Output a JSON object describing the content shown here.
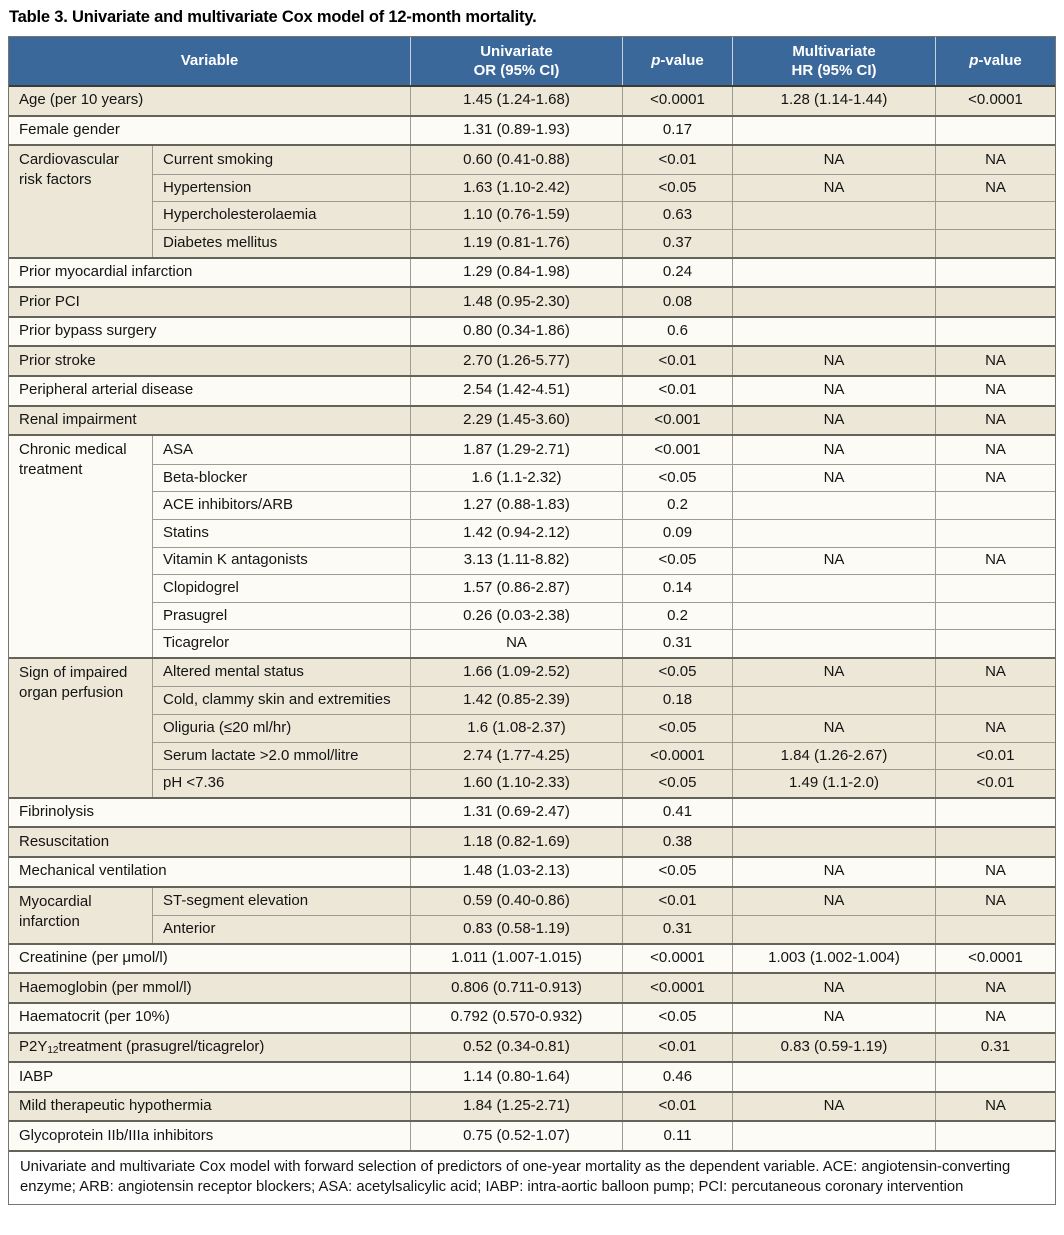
{
  "title": "Table 3. Univariate and multivariate Cox model of 12-month mortality.",
  "colors": {
    "header_bg": "#3b689b",
    "header_text": "#ffffff",
    "row_beige": "#ece7d7",
    "row_white": "#fcfbf5",
    "border_dark": "#63635a",
    "border_light": "#9c9c92"
  },
  "header": {
    "variable": "Variable",
    "univariate": {
      "line1": "Univariate",
      "line2": "OR (95% CI)"
    },
    "pvalue1": {
      "italic": "p",
      "rest": "-value"
    },
    "multivariate": {
      "line1": "Multivariate",
      "line2": "HR (95% CI)"
    },
    "pvalue2": {
      "italic": "p",
      "rest": "-value"
    }
  },
  "rows": [
    {
      "shade": "beige",
      "variable": "Age (per 10 years)",
      "cells": [
        "1.45 (1.24-1.68)",
        "<0.0001",
        "1.28 (1.14-1.44)",
        "<0.0001"
      ]
    },
    {
      "shade": "white",
      "variable": "Female gender",
      "cells": [
        "1.31 (0.89-1.93)",
        "0.17",
        "",
        ""
      ]
    },
    {
      "shade": "beige",
      "group": "Cardiovascular risk factors",
      "subs": [
        {
          "variable": "Current smoking",
          "cells": [
            "0.60 (0.41-0.88)",
            "<0.01",
            "NA",
            "NA"
          ]
        },
        {
          "variable": "Hypertension",
          "cells": [
            "1.63 (1.10-2.42)",
            "<0.05",
            "NA",
            "NA"
          ]
        },
        {
          "variable": "Hypercholesterolaemia",
          "cells": [
            "1.10 (0.76-1.59)",
            "0.63",
            "",
            ""
          ]
        },
        {
          "variable": "Diabetes mellitus",
          "cells": [
            "1.19 (0.81-1.76)",
            "0.37",
            "",
            ""
          ]
        }
      ]
    },
    {
      "shade": "white",
      "variable": "Prior myocardial infarction",
      "cells": [
        "1.29 (0.84-1.98)",
        "0.24",
        "",
        ""
      ]
    },
    {
      "shade": "beige",
      "variable": "Prior PCI",
      "cells": [
        "1.48 (0.95-2.30)",
        "0.08",
        "",
        ""
      ]
    },
    {
      "shade": "white",
      "variable": "Prior bypass surgery",
      "cells": [
        "0.80 (0.34-1.86)",
        "0.6",
        "",
        ""
      ]
    },
    {
      "shade": "beige",
      "variable": "Prior stroke",
      "cells": [
        "2.70 (1.26-5.77)",
        "<0.01",
        "NA",
        "NA"
      ]
    },
    {
      "shade": "white",
      "variable": "Peripheral arterial disease",
      "cells": [
        "2.54 (1.42-4.51)",
        "<0.01",
        "NA",
        "NA"
      ]
    },
    {
      "shade": "beige",
      "variable": "Renal impairment",
      "cells": [
        "2.29 (1.45-3.60)",
        "<0.001",
        "NA",
        "NA"
      ]
    },
    {
      "shade": "white",
      "group": "Chronic medical treatment",
      "subs": [
        {
          "variable": "ASA",
          "cells": [
            "1.87 (1.29-2.71)",
            "<0.001",
            "NA",
            "NA"
          ]
        },
        {
          "variable": "Beta-blocker",
          "cells": [
            "1.6 (1.1-2.32)",
            "<0.05",
            "NA",
            "NA"
          ]
        },
        {
          "variable": "ACE inhibitors/ARB",
          "cells": [
            "1.27 (0.88-1.83)",
            "0.2",
            "",
            ""
          ]
        },
        {
          "variable": "Statins",
          "cells": [
            "1.42 (0.94-2.12)",
            "0.09",
            "",
            ""
          ]
        },
        {
          "variable": "Vitamin K antagonists",
          "cells": [
            "3.13 (1.11-8.82)",
            "<0.05",
            "NA",
            "NA"
          ]
        },
        {
          "variable": "Clopidogrel",
          "cells": [
            "1.57 (0.86-2.87)",
            "0.14",
            "",
            ""
          ]
        },
        {
          "variable": "Prasugrel",
          "cells": [
            "0.26 (0.03-2.38)",
            "0.2",
            "",
            ""
          ]
        },
        {
          "variable": "Ticagrelor",
          "cells": [
            "NA",
            "0.31",
            "",
            ""
          ]
        }
      ]
    },
    {
      "shade": "beige",
      "group": "Sign of impaired organ perfusion",
      "subs": [
        {
          "variable": "Altered mental status",
          "cells": [
            "1.66 (1.09-2.52)",
            "<0.05",
            "NA",
            "NA"
          ]
        },
        {
          "variable": "Cold, clammy skin and extremities",
          "cells": [
            "1.42 (0.85-2.39)",
            "0.18",
            "",
            ""
          ]
        },
        {
          "variable": "Oliguria (≤20 ml/hr)",
          "cells": [
            "1.6 (1.08-2.37)",
            "<0.05",
            "NA",
            "NA"
          ]
        },
        {
          "variable": "Serum lactate >2.0 mmol/litre",
          "cells": [
            "2.74 (1.77-4.25)",
            "<0.0001",
            "1.84 (1.26-2.67)",
            "<0.01"
          ]
        },
        {
          "variable": "pH <7.36",
          "cells": [
            "1.60 (1.10-2.33)",
            "<0.05",
            "1.49 (1.1-2.0)",
            "<0.01"
          ]
        }
      ]
    },
    {
      "shade": "white",
      "variable": "Fibrinolysis",
      "cells": [
        "1.31 (0.69-2.47)",
        "0.41",
        "",
        ""
      ]
    },
    {
      "shade": "beige",
      "variable": "Resuscitation",
      "cells": [
        "1.18 (0.82-1.69)",
        "0.38",
        "",
        ""
      ]
    },
    {
      "shade": "white",
      "variable": "Mechanical ventilation",
      "cells": [
        "1.48 (1.03-2.13)",
        "<0.05",
        "NA",
        "NA"
      ]
    },
    {
      "shade": "beige",
      "group": "Myocardial infarction",
      "subs": [
        {
          "variable": "ST-segment elevation",
          "cells": [
            "0.59 (0.40-0.86)",
            "<0.01",
            "NA",
            "NA"
          ]
        },
        {
          "variable": "Anterior",
          "cells": [
            "0.83 (0.58-1.19)",
            "0.31",
            "",
            ""
          ]
        }
      ]
    },
    {
      "shade": "white",
      "variable": "Creatinine (per μmol/l)",
      "cells": [
        "1.011 (1.007-1.015)",
        "<0.0001",
        "1.003 (1.002-1.004)",
        "<0.0001"
      ]
    },
    {
      "shade": "beige",
      "variable": "Haemoglobin (per mmol/l)",
      "cells": [
        "0.806 (0.711-0.913)",
        "<0.0001",
        "NA",
        "NA"
      ]
    },
    {
      "shade": "white",
      "variable": "Haematocrit (per 10%)",
      "cells": [
        "0.792 (0.570-0.932)",
        "<0.05",
        "NA",
        "NA"
      ]
    },
    {
      "shade": "beige",
      "variable_parts": [
        {
          "t": "P2Y"
        },
        {
          "t": "12",
          "sub": true
        },
        {
          "t": " treatment (prasugrel/ticagrelor)"
        }
      ],
      "cells": [
        "0.52 (0.34-0.81)",
        "<0.01",
        "0.83 (0.59-1.19)",
        "0.31"
      ]
    },
    {
      "shade": "white",
      "variable": "IABP",
      "cells": [
        "1.14 (0.80-1.64)",
        "0.46",
        "",
        ""
      ]
    },
    {
      "shade": "beige",
      "variable": "Mild therapeutic hypothermia",
      "cells": [
        "1.84 (1.25-2.71)",
        "<0.01",
        "NA",
        "NA"
      ]
    },
    {
      "shade": "white",
      "variable": "Glycoprotein IIb/IIIa inhibitors",
      "cells": [
        "0.75 (0.52-1.07)",
        "0.11",
        "",
        ""
      ]
    }
  ],
  "footnote": "Univariate and multivariate Cox model with forward selection of predictors of one-year mortality as the dependent variable. ACE: angiotensin-converting enzyme; ARB: angiotensin receptor blockers; ASA: acetylsalicylic acid; IABP: intra-aortic balloon pump; PCI: percutaneous coronary intervention"
}
